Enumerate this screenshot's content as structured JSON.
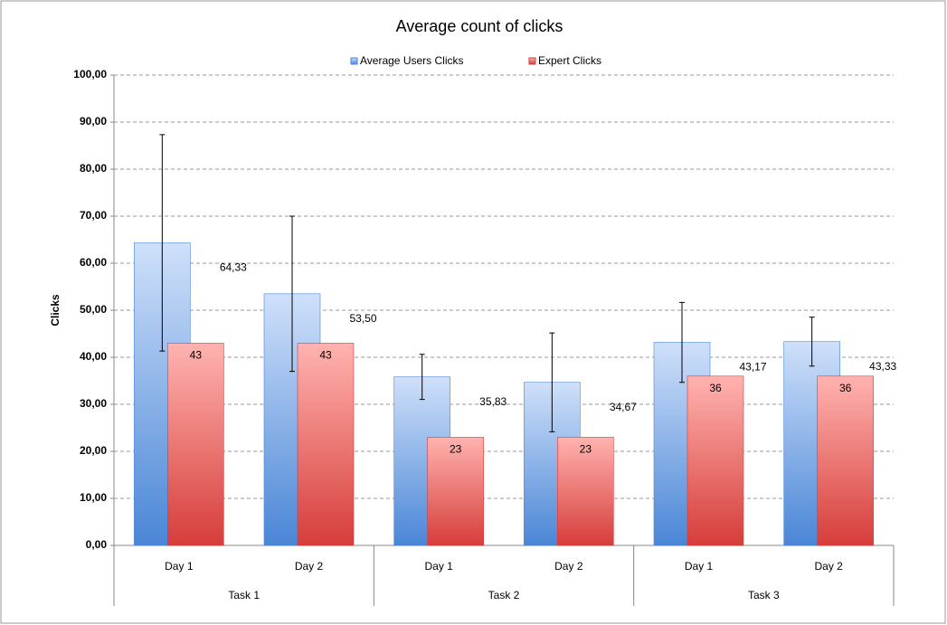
{
  "chart_data": {
    "type": "bar",
    "title": "Average count of clicks",
    "y_label": "Clicks",
    "groups": [
      {
        "name": "Task 1",
        "categories": [
          "Day 1",
          "Day 2"
        ]
      },
      {
        "name": "Task 2",
        "categories": [
          "Day 1",
          "Day 2"
        ]
      },
      {
        "name": "Task 3",
        "categories": [
          "Day 1",
          "Day 2"
        ]
      }
    ],
    "series": [
      {
        "name": "Average Users Clicks",
        "color": "#4a86d6",
        "values": [
          64.33,
          53.5,
          35.83,
          34.67,
          43.17,
          43.33
        ],
        "value_labels": [
          "64,33",
          "53,50",
          "35,83",
          "34,67",
          "43,17",
          "43,33"
        ],
        "errors": [
          23,
          16.5,
          4.8,
          10.5,
          8.5,
          5.2
        ]
      },
      {
        "name": "Expert Clicks",
        "color": "#d63d3a",
        "values": [
          43,
          43,
          23,
          23,
          36,
          36
        ]
      }
    ],
    "ylim": [
      0,
      100
    ],
    "yticks": [
      {
        "value": 0,
        "label": "0,00"
      },
      {
        "value": 10,
        "label": "10,00"
      },
      {
        "value": 20,
        "label": "20,00"
      },
      {
        "value": 30,
        "label": "30,00"
      },
      {
        "value": 40,
        "label": "40,00"
      },
      {
        "value": 50,
        "label": "50,00"
      },
      {
        "value": 60,
        "label": "60,00"
      },
      {
        "value": 70,
        "label": "70,00"
      },
      {
        "value": 80,
        "label": "80,00"
      },
      {
        "value": 90,
        "label": "90,00"
      },
      {
        "value": 100,
        "label": "100,00"
      }
    ],
    "grid": true,
    "legend": "top"
  }
}
